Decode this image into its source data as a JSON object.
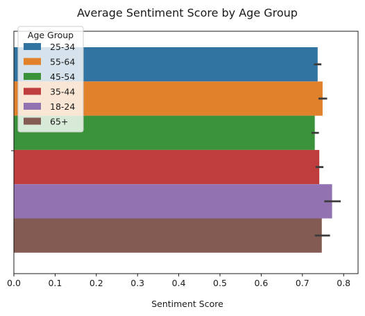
{
  "chart_data": {
    "type": "bar",
    "orientation": "horizontal",
    "title": "Average Sentiment Score by Age Group",
    "xlabel": "Sentiment Score",
    "ylabel": "",
    "xlim": [
      0,
      0.835
    ],
    "xticks": [
      0.0,
      0.1,
      0.2,
      0.3,
      0.4,
      0.5,
      0.6,
      0.7,
      0.8
    ],
    "xtick_labels": [
      "0.0",
      "0.1",
      "0.2",
      "0.3",
      "0.4",
      "0.5",
      "0.6",
      "0.7",
      "0.8"
    ],
    "grid": false,
    "legend": {
      "title": "Age Group",
      "placement": "top-left"
    },
    "series": [
      {
        "name": "25-34",
        "value": 0.737,
        "ci": [
          0.728,
          0.746
        ],
        "color": "#3274a1"
      },
      {
        "name": "55-64",
        "value": 0.749,
        "ci": [
          0.739,
          0.76
        ],
        "color": "#e1812c"
      },
      {
        "name": "45-54",
        "value": 0.73,
        "ci": [
          0.722,
          0.74
        ],
        "color": "#3a923a"
      },
      {
        "name": "35-44",
        "value": 0.741,
        "ci": [
          0.732,
          0.751
        ],
        "color": "#c03d3e"
      },
      {
        "name": "18-24",
        "value": 0.772,
        "ci": [
          0.753,
          0.793
        ],
        "color": "#9372b2"
      },
      {
        "name": "65+",
        "value": 0.747,
        "ci": [
          0.73,
          0.767
        ],
        "color": "#845b53"
      }
    ]
  }
}
